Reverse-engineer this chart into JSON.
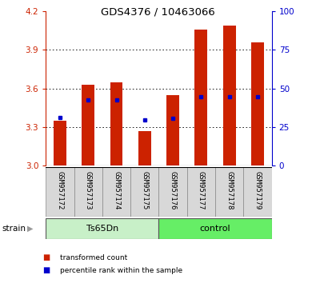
{
  "title": "GDS4376 / 10463066",
  "samples": [
    "GSM957172",
    "GSM957173",
    "GSM957174",
    "GSM957175",
    "GSM957176",
    "GSM957177",
    "GSM957178",
    "GSM957179"
  ],
  "red_values": [
    3.35,
    3.63,
    3.65,
    3.27,
    3.55,
    4.06,
    4.09,
    3.96
  ],
  "blue_values": [
    3.375,
    3.51,
    3.51,
    3.355,
    3.37,
    3.535,
    3.535,
    3.535
  ],
  "ylim": [
    3.0,
    4.2
  ],
  "yticks": [
    3.0,
    3.3,
    3.6,
    3.9,
    4.2
  ],
  "y2ticks": [
    0,
    25,
    50,
    75,
    100
  ],
  "y2lim": [
    0,
    100
  ],
  "groups": [
    {
      "label": "Ts65Dn",
      "start": 0,
      "end": 4,
      "color": "#c8f0c8"
    },
    {
      "label": "control",
      "start": 4,
      "end": 8,
      "color": "#66ee66"
    }
  ],
  "strain_label": "strain",
  "bar_color": "#cc2200",
  "dot_color": "#0000cc",
  "label_bg_color": "#d8d8d8",
  "label_edge_color": "#888888",
  "yaxis_color": "#cc2200",
  "y2axis_color": "#0000cc",
  "bar_width": 0.45,
  "grid_yticks": [
    3.3,
    3.6,
    3.9
  ],
  "legend_items": [
    {
      "label": "transformed count",
      "color": "#cc2200"
    },
    {
      "label": "percentile rank within the sample",
      "color": "#0000cc"
    }
  ]
}
